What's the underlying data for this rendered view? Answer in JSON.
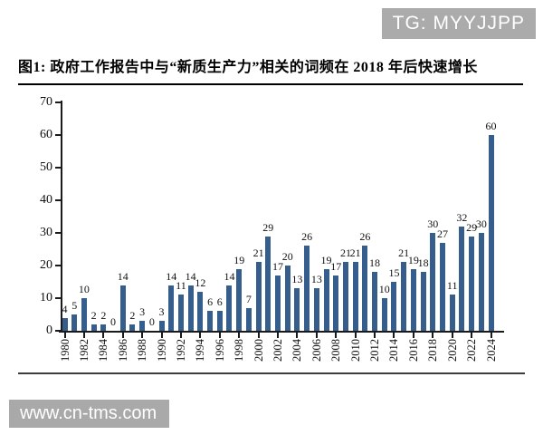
{
  "watermark_top": {
    "text": "TG: MYYJJPP",
    "bg_color": "#ABABAB",
    "text_color": "#FFFFFF"
  },
  "watermark_bottom": {
    "text": "www.cn-tms.com",
    "bg_color": "#A9A9A9",
    "text_color": "#FFFFFF"
  },
  "figure_title": "图1: 政府工作报告中与“新质生产力”相关的词频在 2018 年后快速增长",
  "chart_data": {
    "type": "bar",
    "title": "图1: 政府工作报告中与“新质生产力”相关的词频在 2018 年后快速增长",
    "categories": [
      "1980",
      "1981",
      "1982",
      "1983",
      "1984",
      "1985",
      "1986",
      "1987",
      "1988",
      "1989",
      "1990",
      "1991",
      "1992",
      "1993",
      "1994",
      "1995",
      "1996",
      "1997",
      "1998",
      "1999",
      "2000",
      "2001",
      "2002",
      "2003",
      "2004",
      "2005",
      "2006",
      "2007",
      "2008",
      "2009",
      "2010",
      "2011",
      "2012",
      "2013",
      "2014",
      "2015",
      "2016",
      "2017",
      "2018",
      "2019",
      "2020",
      "2021",
      "2022",
      "2023",
      "2024"
    ],
    "values": [
      4,
      5,
      10,
      2,
      2,
      0,
      14,
      2,
      3,
      0,
      3,
      14,
      11,
      14,
      12,
      6,
      6,
      14,
      19,
      7,
      21,
      29,
      17,
      20,
      13,
      26,
      13,
      19,
      17,
      21,
      21,
      26,
      18,
      10,
      15,
      21,
      19,
      18,
      30,
      27,
      11,
      32,
      29,
      30,
      60
    ],
    "xlabel": "",
    "ylabel": "",
    "ylim": [
      0,
      70
    ],
    "yticks": [
      0,
      10,
      20,
      30,
      40,
      50,
      60,
      70
    ],
    "xtick_interval": 2,
    "data_labels": true,
    "grid": false,
    "legend": "none",
    "bar_color": "#365E8C",
    "axis_color": "#1A1A1A",
    "label_color": "#111111"
  }
}
